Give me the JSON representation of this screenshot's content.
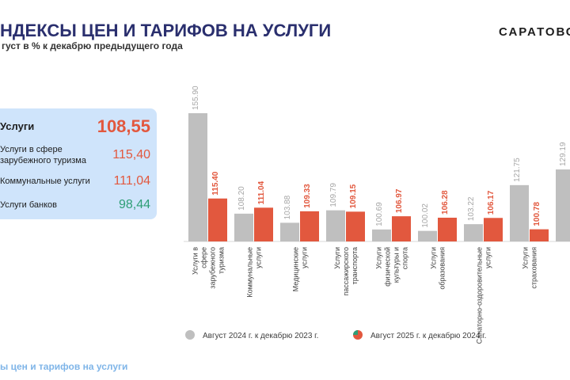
{
  "header": {
    "title": "НДЕКСЫ ЦЕН И ТАРИФОВ НА УСЛУГИ",
    "subtitle": "густ в % к декабрю предыдущего года",
    "brand": "САРАТОВС"
  },
  "summary": [
    {
      "label": "Услуги",
      "value": "108,55"
    },
    {
      "label": "Услуги в сфере зарубежного туризма",
      "value": "115,40"
    },
    {
      "label": "Коммунальные услуги",
      "value": "111,04"
    },
    {
      "label": "Услуги банков",
      "value": "98,44"
    }
  ],
  "footer": "ы цен и тарифов на услуги",
  "colors": {
    "series_2024": "#bfbfbf",
    "series_2025": "#e2583e",
    "series_2025_icon_alt": "#2e9e76",
    "summary_bg": "#cfe4fb",
    "title": "#2a2f6e",
    "positive": "#e2583e",
    "negative": "#2e9e76"
  },
  "chart_data": {
    "type": "bar",
    "categories": [
      "Услуги в сфере зарубежного туризма",
      "Коммунальные услуги",
      "Медицинские услуги",
      "Услуги пассажирского транспорта",
      "Услуги физической культуры и спорта",
      "Услуги образования",
      "Санаторно-оздоровительные услуги",
      "Услуги страхования",
      ""
    ],
    "series": [
      {
        "name": "Август 2024 г. к декабрю  2023 г.",
        "values": [
          155.9,
          108.2,
          103.88,
          109.79,
          100.69,
          100.02,
          103.22,
          121.75,
          129.19
        ],
        "labels": [
          "155.90",
          "108.20",
          "103.88",
          "109.79",
          "100.69",
          "100.02",
          "103.22",
          "121.75",
          "129.19"
        ]
      },
      {
        "name": "Август  2025 г. к декабрю  2024 г.",
        "values": [
          115.4,
          111.04,
          109.33,
          109.15,
          106.97,
          106.28,
          106.17,
          100.78,
          null
        ],
        "labels": [
          "115.40",
          "111.04",
          "109.33",
          "109.15",
          "106.97",
          "106.28",
          "106.17",
          "100.78",
          ""
        ]
      }
    ],
    "ylim": [
      95,
      158
    ],
    "legend_position": "bottom",
    "grid": false
  }
}
